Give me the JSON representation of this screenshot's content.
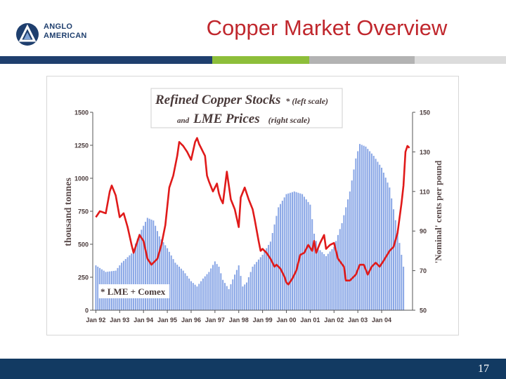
{
  "header": {
    "logo_line1": "ANGLO",
    "logo_line2": "AMERICAN",
    "title": "Copper Market Overview"
  },
  "footer": {
    "page_number": "17"
  },
  "colors": {
    "title": "#c0272d",
    "stocks_bar": "#8aa7e6",
    "price_line": "#e01a1a",
    "footer": "#123a62",
    "stripe_1": "#1f3f6e",
    "stripe_2": "#8dbe3a",
    "stripe_3": "#b3b3b3",
    "stripe_4": "#dcdcdc"
  },
  "chart_data": {
    "type": "bar",
    "title_line1_main": "Refined Copper Stocks",
    "title_line1_note": "* (left scale)",
    "title_line2_prefix": "and",
    "title_line2_main": "LME Prices",
    "title_line2_note": "(right scale)",
    "footnote": "* LME + Comex",
    "ylabel_left": "thousand tonnes",
    "ylabel_right": "'Nominal' cents per pound",
    "ylim_left": [
      0,
      1500
    ],
    "ylim_right": [
      50,
      150
    ],
    "yticks_left": [
      "0",
      "250",
      "500",
      "750",
      "1000",
      "1250",
      "1500"
    ],
    "yticks_right": [
      "50",
      "70",
      "90",
      "110",
      "130",
      "150"
    ],
    "xtick_labels": [
      "Jan 92",
      "Jan 93",
      "Jan 94",
      "Jan 95",
      "Jan 96",
      "Jan 97",
      "Jan 98",
      "Jan 99",
      "Jan 00",
      "Jan 01",
      "Jan 02",
      "Jan 03",
      "Jan 04"
    ],
    "grid": false,
    "series": [
      {
        "kind": "bar",
        "axis": "left",
        "x_start": "Jan 92",
        "interval": "month",
        "anchors": [
          [
            0,
            340
          ],
          [
            5,
            290
          ],
          [
            10,
            300
          ],
          [
            13,
            360
          ],
          [
            18,
            430
          ],
          [
            22,
            580
          ],
          [
            26,
            700
          ],
          [
            29,
            680
          ],
          [
            32,
            560
          ],
          [
            36,
            470
          ],
          [
            40,
            360
          ],
          [
            44,
            300
          ],
          [
            48,
            220
          ],
          [
            51,
            180
          ],
          [
            54,
            240
          ],
          [
            57,
            290
          ],
          [
            60,
            370
          ],
          [
            62,
            330
          ],
          [
            64,
            230
          ],
          [
            67,
            160
          ],
          [
            70,
            270
          ],
          [
            72,
            340
          ],
          [
            74,
            180
          ],
          [
            76,
            210
          ],
          [
            79,
            330
          ],
          [
            84,
            420
          ],
          [
            88,
            520
          ],
          [
            92,
            780
          ],
          [
            96,
            880
          ],
          [
            100,
            900
          ],
          [
            104,
            880
          ],
          [
            108,
            800
          ],
          [
            110,
            580
          ],
          [
            112,
            470
          ],
          [
            116,
            410
          ],
          [
            120,
            480
          ],
          [
            124,
            660
          ],
          [
            128,
            900
          ],
          [
            131,
            1150
          ],
          [
            133,
            1260
          ],
          [
            136,
            1240
          ],
          [
            140,
            1170
          ],
          [
            144,
            1080
          ],
          [
            148,
            930
          ],
          [
            152,
            600
          ],
          [
            155,
            330
          ]
        ],
        "values": []
      },
      {
        "kind": "line",
        "axis": "right",
        "x_start": "Jan 92",
        "interval": "month",
        "anchors": [
          [
            0,
            97
          ],
          [
            2,
            100
          ],
          [
            5,
            99
          ],
          [
            7,
            110
          ],
          [
            8,
            113
          ],
          [
            10,
            108
          ],
          [
            12,
            97
          ],
          [
            14,
            99
          ],
          [
            16,
            92
          ],
          [
            18,
            83
          ],
          [
            19,
            79
          ],
          [
            22,
            88
          ],
          [
            24,
            85
          ],
          [
            26,
            76
          ],
          [
            28,
            73
          ],
          [
            30,
            75
          ],
          [
            31,
            76
          ],
          [
            33,
            83
          ],
          [
            35,
            93
          ],
          [
            37,
            112
          ],
          [
            39,
            118
          ],
          [
            41,
            128
          ],
          [
            42,
            135
          ],
          [
            44,
            133
          ],
          [
            46,
            130
          ],
          [
            48,
            126
          ],
          [
            50,
            135
          ],
          [
            51,
            137
          ],
          [
            52,
            134
          ],
          [
            54,
            130
          ],
          [
            55,
            128
          ],
          [
            56,
            118
          ],
          [
            57,
            115
          ],
          [
            59,
            110
          ],
          [
            61,
            114
          ],
          [
            62,
            109
          ],
          [
            63,
            106
          ],
          [
            64,
            104
          ],
          [
            66,
            120
          ],
          [
            68,
            106
          ],
          [
            70,
            101
          ],
          [
            72,
            92
          ],
          [
            73,
            107
          ],
          [
            75,
            112
          ],
          [
            77,
            106
          ],
          [
            79,
            101
          ],
          [
            80,
            96
          ],
          [
            82,
            85
          ],
          [
            83,
            80
          ],
          [
            84,
            81
          ],
          [
            86,
            79
          ],
          [
            88,
            76
          ],
          [
            90,
            72
          ],
          [
            91,
            73
          ],
          [
            93,
            71
          ],
          [
            95,
            67
          ],
          [
            96,
            64
          ],
          [
            97,
            63
          ],
          [
            99,
            66
          ],
          [
            101,
            70
          ],
          [
            103,
            78
          ],
          [
            105,
            79
          ],
          [
            107,
            83
          ],
          [
            109,
            80
          ],
          [
            110,
            85
          ],
          [
            111,
            79
          ],
          [
            113,
            84
          ],
          [
            115,
            88
          ],
          [
            116,
            81
          ],
          [
            118,
            83
          ],
          [
            120,
            84
          ],
          [
            122,
            76
          ],
          [
            125,
            72
          ],
          [
            126,
            65
          ],
          [
            128,
            65
          ],
          [
            131,
            68
          ],
          [
            133,
            73
          ],
          [
            135,
            73
          ],
          [
            137,
            68
          ],
          [
            139,
            72
          ],
          [
            141,
            74
          ],
          [
            143,
            72
          ],
          [
            145,
            75
          ],
          [
            148,
            80
          ],
          [
            150,
            82
          ],
          [
            152,
            89
          ],
          [
            154,
            104
          ],
          [
            155,
            113
          ],
          [
            156,
            130
          ],
          [
            157,
            133
          ],
          [
            158,
            132
          ]
        ],
        "values": []
      }
    ]
  }
}
